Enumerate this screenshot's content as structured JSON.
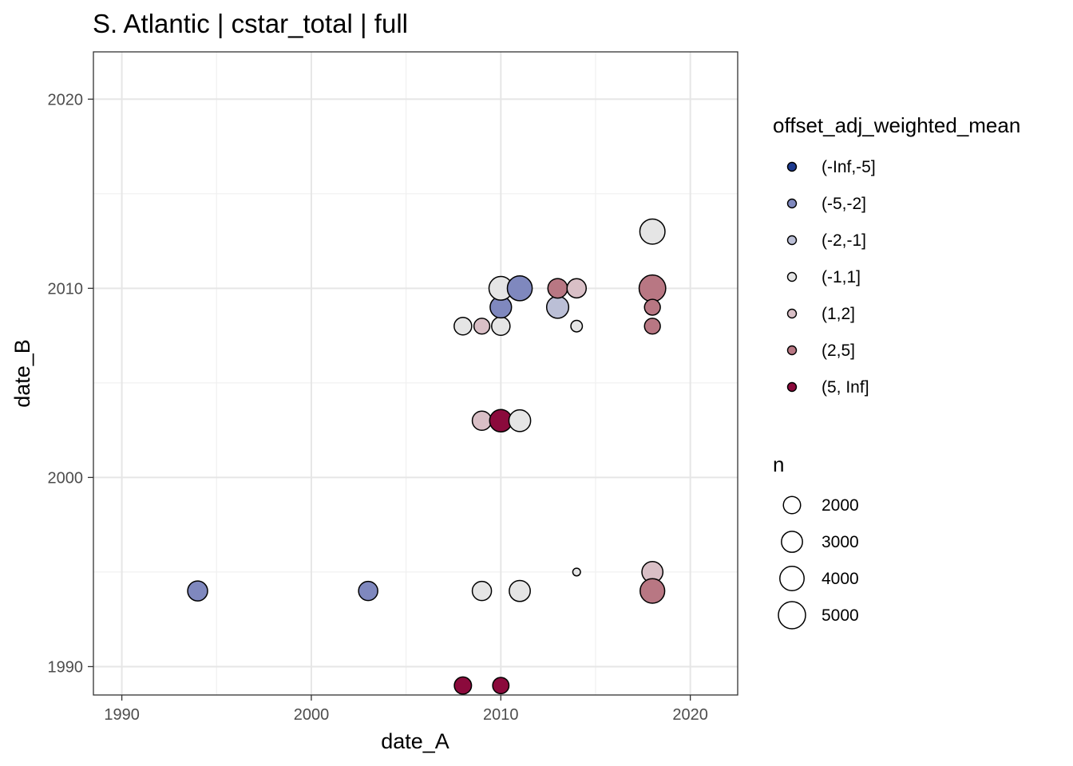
{
  "chart_data": {
    "type": "scatter",
    "title": "S. Atlantic | cstar_total | full",
    "xlabel": "date_A",
    "ylabel": "date_B",
    "xlim": [
      1988.5,
      2022.5
    ],
    "ylim": [
      1988.5,
      2022.5
    ],
    "x_ticks": [
      1990,
      2000,
      2010,
      2020
    ],
    "y_ticks": [
      1990,
      2000,
      2010,
      2020
    ],
    "grid": true,
    "legend_placement": "right",
    "color_legend": {
      "title": "offset_adj_weighted_mean",
      "categories": [
        {
          "label": "(-Inf,-5]",
          "color": "#1D3A8F"
        },
        {
          "label": "(-5,-2]",
          "color": "#7F88BE"
        },
        {
          "label": "(-2,-1]",
          "color": "#BBBFD6"
        },
        {
          "label": "(-1,1]",
          "color": "#E5E5E5"
        },
        {
          "label": "(1,2]",
          "color": "#D9BFC6"
        },
        {
          "label": "(2,5]",
          "color": "#B87783"
        },
        {
          "label": "(5, Inf]",
          "color": "#8B0A3C"
        }
      ]
    },
    "size_legend": {
      "title": "n",
      "entries": [
        {
          "label": "2000",
          "n": 2000
        },
        {
          "label": "3000",
          "n": 3000
        },
        {
          "label": "4000",
          "n": 4000
        },
        {
          "label": "5000",
          "n": 5000
        }
      ]
    },
    "points": [
      {
        "x": 1994,
        "y": 1994,
        "category": 1,
        "n": 2700
      },
      {
        "x": 2003,
        "y": 1994,
        "category": 1,
        "n": 2500
      },
      {
        "x": 2008,
        "y": 1989,
        "category": 6,
        "n": 2000
      },
      {
        "x": 2010,
        "y": 1989,
        "category": 6,
        "n": 1800
      },
      {
        "x": 2009,
        "y": 1994,
        "category": 3,
        "n": 2500
      },
      {
        "x": 2011,
        "y": 1994,
        "category": 3,
        "n": 3000
      },
      {
        "x": 2014,
        "y": 1995,
        "category": 3,
        "n": 400
      },
      {
        "x": 2018,
        "y": 1995,
        "category": 4,
        "n": 3000
      },
      {
        "x": 2018,
        "y": 1994,
        "category": 5,
        "n": 4100
      },
      {
        "x": 2009,
        "y": 2003,
        "category": 4,
        "n": 2500
      },
      {
        "x": 2010,
        "y": 2003,
        "category": 6,
        "n": 3400
      },
      {
        "x": 2011,
        "y": 2003,
        "category": 3,
        "n": 3200
      },
      {
        "x": 2008,
        "y": 2008,
        "category": 3,
        "n": 2100
      },
      {
        "x": 2009,
        "y": 2008,
        "category": 4,
        "n": 1700
      },
      {
        "x": 2010,
        "y": 2008,
        "category": 3,
        "n": 2300
      },
      {
        "x": 2010,
        "y": 2009,
        "category": 1,
        "n": 3100
      },
      {
        "x": 2010,
        "y": 2010,
        "category": 3,
        "n": 3800
      },
      {
        "x": 2011,
        "y": 2010,
        "category": 1,
        "n": 4200
      },
      {
        "x": 2013,
        "y": 2009,
        "category": 2,
        "n": 3300
      },
      {
        "x": 2013,
        "y": 2010,
        "category": 5,
        "n": 2600
      },
      {
        "x": 2014,
        "y": 2010,
        "category": 4,
        "n": 2500
      },
      {
        "x": 2014,
        "y": 2008,
        "category": 3,
        "n": 900
      },
      {
        "x": 2018,
        "y": 2013,
        "category": 3,
        "n": 4300
      },
      {
        "x": 2018,
        "y": 2010,
        "category": 5,
        "n": 4800
      },
      {
        "x": 2018,
        "y": 2009,
        "category": 5,
        "n": 1700
      },
      {
        "x": 2018,
        "y": 2008,
        "category": 5,
        "n": 1700
      }
    ]
  }
}
